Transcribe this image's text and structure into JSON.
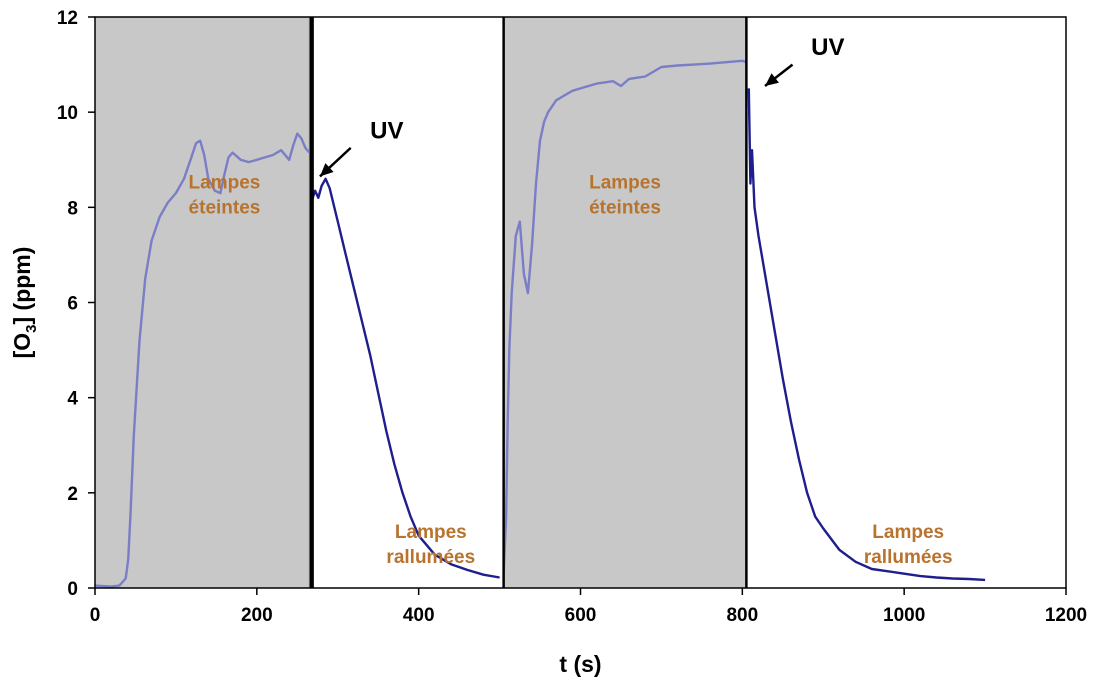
{
  "chart_data": {
    "type": "line",
    "title": "",
    "xlabel": "t (s)",
    "ylabel": {
      "prefix": "[O",
      "subscript": "3",
      "suffix": "] (ppm)"
    },
    "xlim": [
      0,
      1200
    ],
    "ylim": [
      0,
      12
    ],
    "x_ticks": [
      0,
      200,
      400,
      600,
      800,
      1000,
      1200
    ],
    "y_ticks": [
      0,
      2,
      4,
      6,
      8,
      10,
      12
    ],
    "grid": false,
    "legend": "none",
    "colors": {
      "shade": "#c8c8c8",
      "lamp_off_trace": "#7a7ec6",
      "lamp_on_trace": "#1e1e8c",
      "annotation_text": "#b8732e",
      "marker_line": "#000000"
    },
    "shaded_regions": [
      {
        "x": [
          0,
          265
        ],
        "label": "Lampes éteintes",
        "label_lines": [
          "Lampes",
          "éteintes"
        ],
        "label_at": [
          160,
          8.4
        ]
      },
      {
        "x": [
          505,
          805
        ],
        "label": "Lampes éteintes",
        "label_lines": [
          "Lampes",
          "éteintes"
        ],
        "label_at": [
          655,
          8.4
        ]
      }
    ],
    "vertical_lines": [
      268,
      505,
      805
    ],
    "text_annotations": [
      {
        "lines": [
          "Lampes",
          "rallumées"
        ],
        "at": [
          415,
          1.05
        ]
      },
      {
        "lines": [
          "Lampes",
          "rallumées"
        ],
        "at": [
          1005,
          1.05
        ]
      }
    ],
    "arrow_annotations": [
      {
        "text": "UV",
        "text_at": [
          340,
          9.45
        ],
        "from": [
          316,
          9.25
        ],
        "to": [
          278,
          8.65
        ]
      },
      {
        "text": "UV",
        "text_at": [
          885,
          11.2
        ],
        "from": [
          862,
          11.0
        ],
        "to": [
          828,
          10.55
        ]
      }
    ],
    "series": [
      {
        "segment": "lamps-off-1",
        "x": [
          0,
          10,
          20,
          30,
          38,
          41,
          44,
          48,
          55,
          62,
          70,
          80,
          90,
          100,
          110,
          118,
          125,
          130,
          135,
          140,
          148,
          155,
          160,
          165,
          170,
          180,
          190,
          200,
          210,
          220,
          230,
          240,
          245,
          250,
          255,
          260,
          265
        ],
        "y": [
          0.05,
          0.04,
          0.03,
          0.05,
          0.2,
          0.6,
          1.6,
          3.2,
          5.2,
          6.5,
          7.3,
          7.8,
          8.1,
          8.3,
          8.6,
          9.0,
          9.35,
          9.4,
          9.1,
          8.6,
          8.35,
          8.3,
          8.7,
          9.05,
          9.15,
          9.0,
          8.95,
          9.0,
          9.05,
          9.1,
          9.2,
          9.0,
          9.3,
          9.55,
          9.45,
          9.25,
          9.15
        ]
      },
      {
        "segment": "lamps-on-1",
        "x": [
          268,
          272,
          276,
          280,
          285,
          290,
          300,
          310,
          320,
          330,
          340,
          350,
          360,
          370,
          380,
          390,
          400,
          420,
          440,
          460,
          480,
          500
        ],
        "y": [
          8.15,
          8.35,
          8.2,
          8.45,
          8.6,
          8.4,
          7.7,
          7.0,
          6.3,
          5.6,
          4.9,
          4.1,
          3.3,
          2.6,
          2.0,
          1.5,
          1.1,
          0.7,
          0.5,
          0.38,
          0.28,
          0.22
        ]
      },
      {
        "segment": "lamps-off-2",
        "x": [
          505,
          508,
          510,
          512,
          515,
          520,
          525,
          530,
          535,
          540,
          545,
          550,
          555,
          560,
          570,
          580,
          590,
          600,
          620,
          640,
          650,
          660,
          680,
          700,
          720,
          740,
          760,
          780,
          800,
          805
        ],
        "y": [
          0.3,
          1.5,
          3.5,
          5.0,
          6.2,
          7.4,
          7.7,
          6.6,
          6.2,
          7.2,
          8.5,
          9.4,
          9.8,
          10.0,
          10.25,
          10.35,
          10.45,
          10.5,
          10.6,
          10.65,
          10.55,
          10.7,
          10.75,
          10.95,
          10.98,
          11.0,
          11.02,
          11.05,
          11.08,
          11.05
        ]
      },
      {
        "segment": "lamps-on-2",
        "x": [
          808,
          810,
          812,
          815,
          820,
          830,
          840,
          850,
          860,
          870,
          880,
          890,
          900,
          920,
          940,
          960,
          980,
          1000,
          1020,
          1040,
          1060,
          1080,
          1100
        ],
        "y": [
          10.5,
          8.5,
          9.2,
          8.0,
          7.4,
          6.4,
          5.4,
          4.4,
          3.5,
          2.7,
          2.0,
          1.5,
          1.25,
          0.8,
          0.55,
          0.4,
          0.35,
          0.3,
          0.25,
          0.22,
          0.2,
          0.19,
          0.17
        ]
      }
    ]
  }
}
